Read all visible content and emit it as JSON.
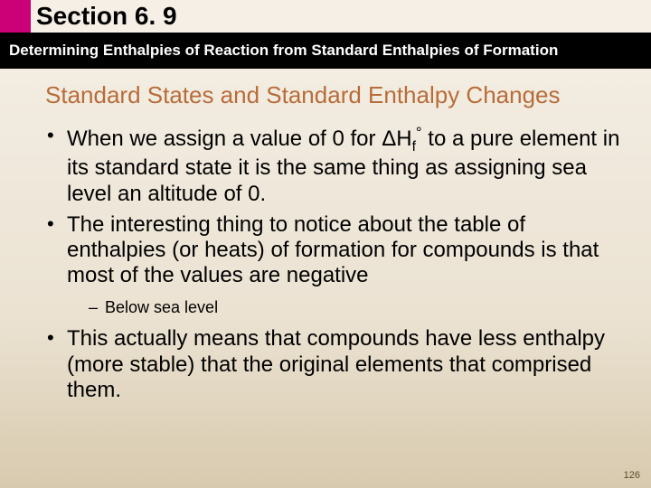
{
  "header": {
    "section_label": "Section 6. 9",
    "subtitle": "Determining Enthalpies of Reaction from Standard Enthalpies of Formation"
  },
  "title": "Standard States and Standard Enthalpy Changes",
  "bullets": {
    "b1_pre": "When we assign a value of 0 for ",
    "b1_formula_delta": "Δ",
    "b1_formula_H": "H",
    "b1_formula_sub": "f",
    "b1_formula_sup": "°",
    "b1_post": " to a pure element in its standard state it is the same thing as assigning sea level an altitude of 0.",
    "b2": "The interesting thing to notice about the table of enthalpies (or heats) of formation for compounds is that most of the values are negative",
    "b2_sub": "Below sea level",
    "b3": "This actually means that compounds have less enthalpy (more stable) that the original elements that comprised them."
  },
  "page_number": "126",
  "colors": {
    "accent": "#cc0077",
    "title": "#b86c39",
    "bg_top": "#f5efe6",
    "bg_bottom": "#d8caae"
  }
}
